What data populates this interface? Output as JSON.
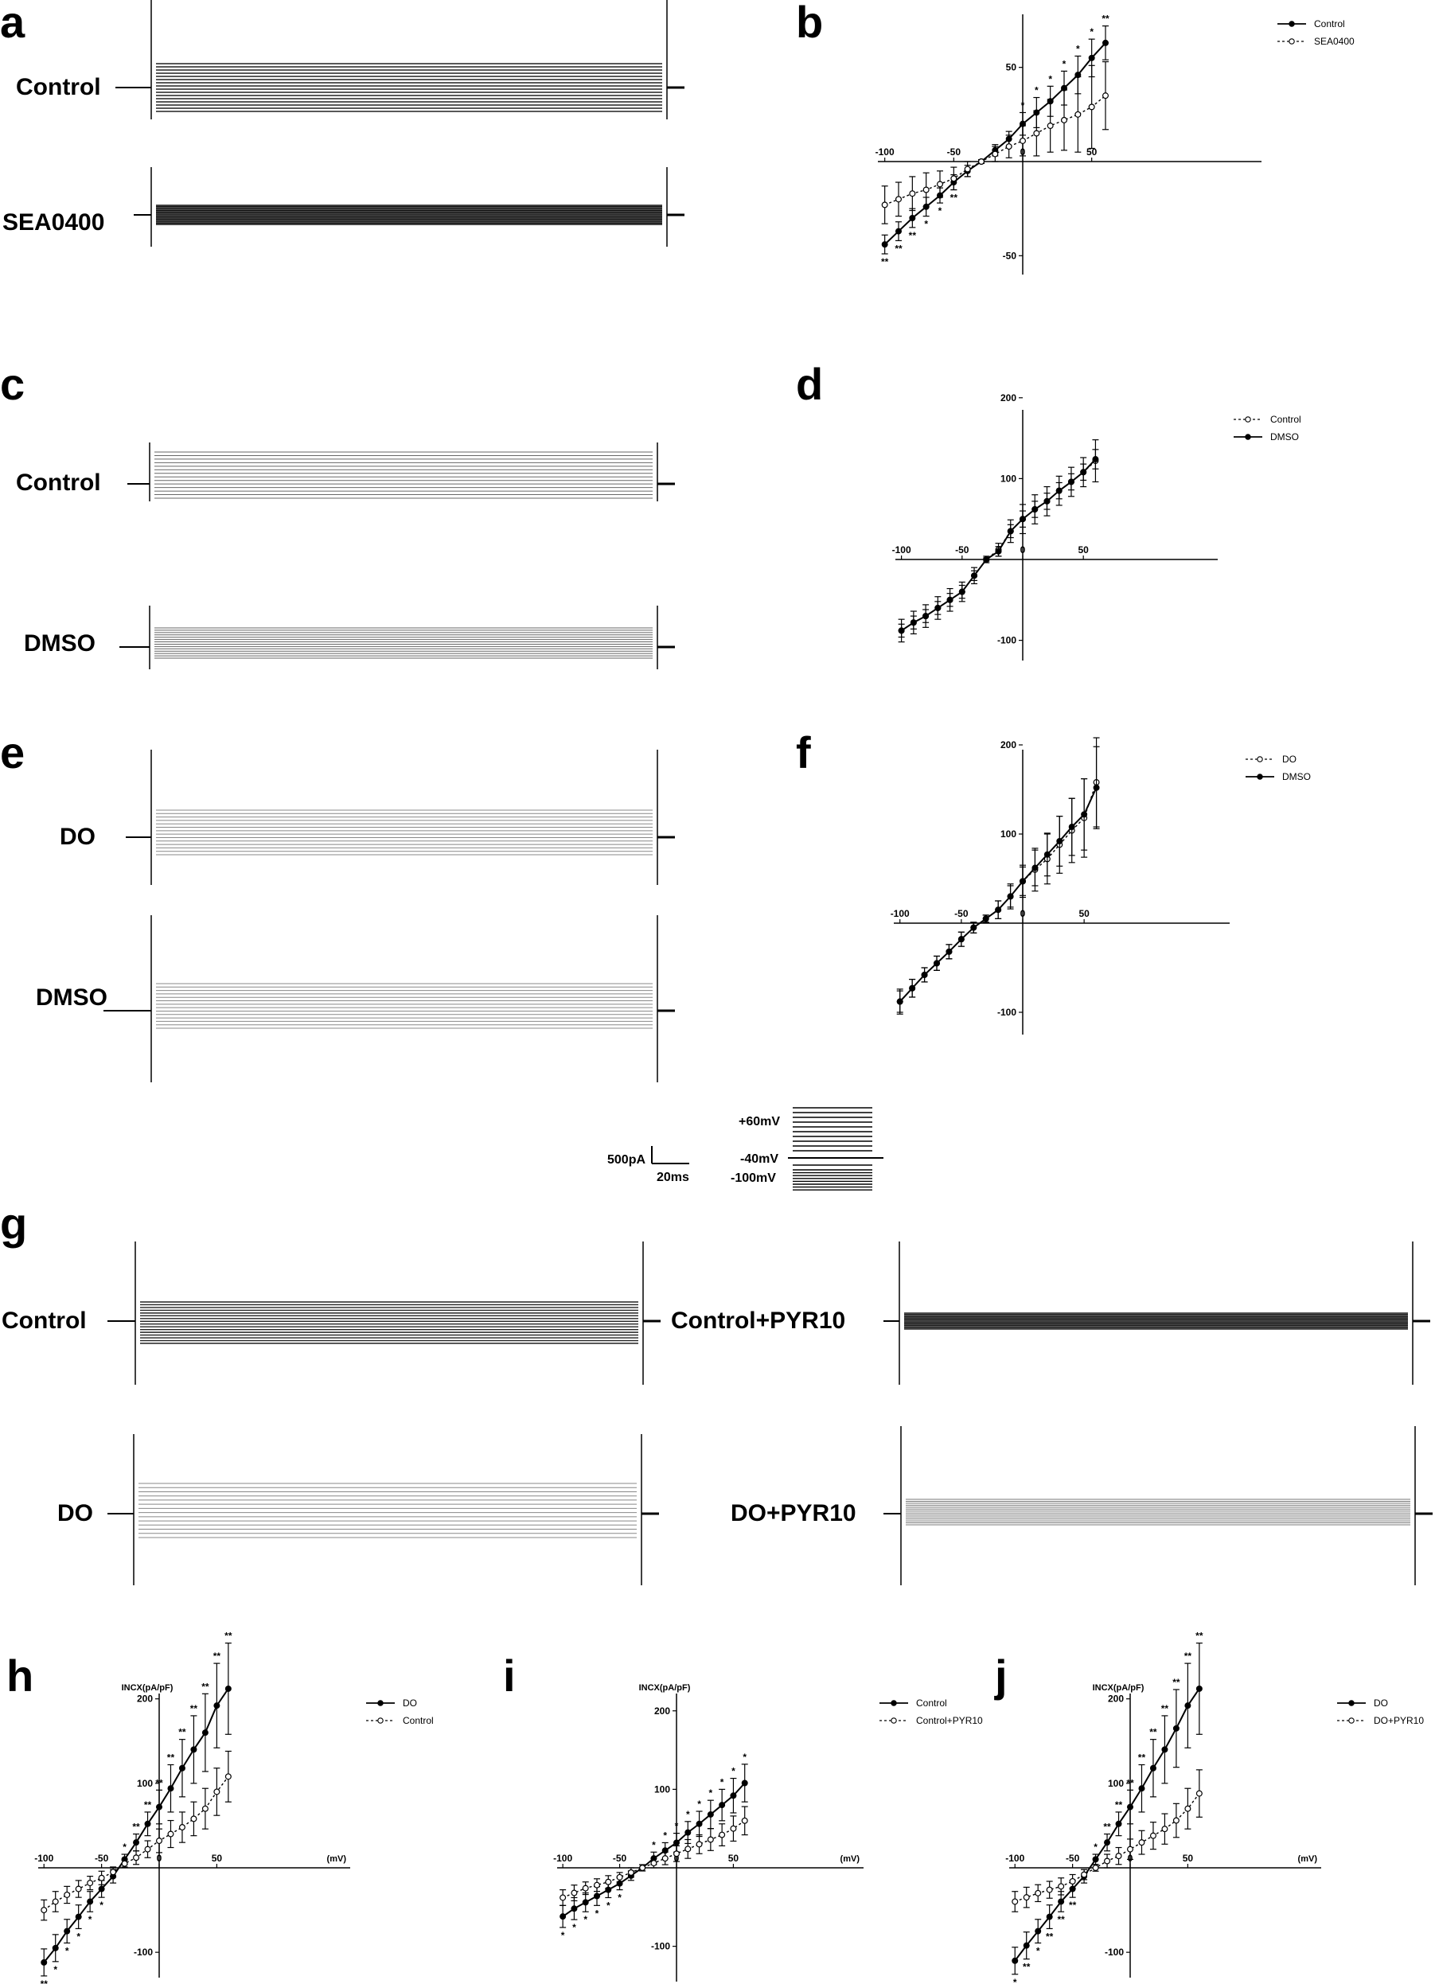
{
  "panels": {
    "a": "a",
    "b": "b",
    "c": "c",
    "d": "d",
    "e": "e",
    "f": "f",
    "g": "g",
    "h": "h",
    "i": "i",
    "j": "j"
  },
  "trace_labels": {
    "a_top": "Control",
    "a_bottom": "SEA0400",
    "c_top": "Control",
    "c_bottom": "DMSO",
    "e_top": "DO",
    "e_bottom": "DMSO",
    "g_tl": "Control",
    "g_tr": "Control+PYR10",
    "g_bl": "DO",
    "g_br": "DO+PYR10"
  },
  "scale_bar": {
    "current": "500pA",
    "time": "20ms"
  },
  "protocol": {
    "top": "+60mV",
    "hold": "-40mV",
    "bottom": "-100mV"
  },
  "chart_data": [
    {
      "id": "b",
      "type": "line",
      "x": [
        -100,
        -90,
        -80,
        -70,
        -60,
        -50,
        -40,
        -30,
        -20,
        -10,
        0,
        10,
        20,
        30,
        40,
        50,
        60
      ],
      "xlim": [
        -105,
        80
      ],
      "ylim": [
        -60,
        80
      ],
      "xticks": [
        -100,
        -50,
        0,
        50
      ],
      "yticks": [
        -50,
        50
      ],
      "ylabel": "",
      "xlabel": "",
      "legend": "top-right",
      "series": [
        {
          "name": "Control",
          "marker": "filled",
          "dash": false,
          "values": [
            -44,
            -37,
            -30,
            -24,
            -18,
            -11,
            -5,
            0,
            6,
            12,
            20,
            26,
            32,
            39,
            46,
            55,
            63
          ],
          "err": [
            5,
            5,
            5,
            5,
            4,
            4,
            3,
            1,
            3,
            4,
            6,
            8,
            8,
            9,
            10,
            10,
            9
          ],
          "sig": [
            "**",
            "**",
            "**",
            "*",
            "*",
            "**",
            "",
            "",
            "",
            "",
            "*",
            "*",
            "*",
            "*",
            "*",
            "*",
            "**"
          ]
        },
        {
          "name": "SEA0400",
          "marker": "open",
          "dash": true,
          "values": [
            -23,
            -20,
            -17,
            -15,
            -12,
            -9,
            -4,
            0,
            4,
            8,
            11,
            15,
            19,
            22,
            25,
            29,
            35
          ],
          "err": [
            10,
            9,
            9,
            9,
            7,
            6,
            4,
            1,
            4,
            6,
            8,
            12,
            14,
            16,
            20,
            22,
            18
          ],
          "sig": []
        }
      ]
    },
    {
      "id": "d",
      "type": "line",
      "x": [
        -100,
        -90,
        -80,
        -70,
        -60,
        -50,
        -40,
        -30,
        -20,
        -10,
        0,
        10,
        20,
        30,
        40,
        50,
        60
      ],
      "xlim": [
        -105,
        65
      ],
      "ylim": [
        -125,
        200
      ],
      "xticks": [
        -100,
        -50,
        0,
        50
      ],
      "yticks": [
        -100,
        100,
        200
      ],
      "ylabel": "",
      "xlabel": "",
      "legend": "top-right",
      "series": [
        {
          "name": "Control",
          "marker": "open",
          "dash": true,
          "values": [
            -88,
            -78,
            -70,
            -60,
            -50,
            -40,
            -20,
            0,
            12,
            35,
            50,
            62,
            72,
            85,
            96,
            108,
            122
          ],
          "err": [
            14,
            14,
            14,
            14,
            14,
            12,
            10,
            4,
            8,
            14,
            18,
            18,
            18,
            18,
            18,
            18,
            26
          ],
          "sig": []
        },
        {
          "name": "DMSO",
          "marker": "filled",
          "dash": false,
          "values": [
            -88,
            -78,
            -70,
            -60,
            -50,
            -40,
            -20,
            0,
            10,
            35,
            50,
            62,
            72,
            85,
            96,
            108,
            124
          ],
          "err": [
            8,
            8,
            8,
            8,
            8,
            8,
            6,
            2,
            6,
            8,
            10,
            10,
            10,
            10,
            10,
            10,
            12
          ],
          "sig": []
        }
      ]
    },
    {
      "id": "f",
      "type": "line",
      "x": [
        -100,
        -90,
        -80,
        -70,
        -60,
        -50,
        -40,
        -30,
        -20,
        -10,
        0,
        10,
        20,
        30,
        40,
        50,
        60
      ],
      "xlim": [
        -105,
        65
      ],
      "ylim": [
        -125,
        200
      ],
      "xticks": [
        -100,
        -50,
        0,
        50
      ],
      "yticks": [
        -100,
        100,
        200
      ],
      "ylabel": "",
      "xlabel": "",
      "legend": "top-right",
      "series": [
        {
          "name": "DO",
          "marker": "open",
          "dash": true,
          "values": [
            -88,
            -73,
            -58,
            -45,
            -32,
            -18,
            -5,
            5,
            15,
            30,
            47,
            60,
            72,
            88,
            104,
            118,
            158
          ],
          "err": [
            14,
            10,
            8,
            8,
            8,
            8,
            6,
            4,
            10,
            14,
            18,
            24,
            28,
            32,
            36,
            44,
            50
          ],
          "sig": []
        },
        {
          "name": "DMSO",
          "marker": "filled",
          "dash": false,
          "values": [
            -88,
            -73,
            -58,
            -45,
            -32,
            -18,
            -5,
            5,
            15,
            30,
            47,
            62,
            77,
            92,
            108,
            122,
            152
          ],
          "err": [
            12,
            10,
            8,
            8,
            8,
            8,
            6,
            4,
            10,
            12,
            16,
            20,
            24,
            28,
            32,
            40,
            46
          ],
          "sig": []
        }
      ]
    },
    {
      "id": "h",
      "type": "line",
      "x": [
        -100,
        -90,
        -80,
        -70,
        -60,
        -50,
        -40,
        -30,
        -20,
        -10,
        0,
        10,
        20,
        30,
        40,
        50,
        60
      ],
      "xlim": [
        -105,
        70
      ],
      "ylim": [
        -130,
        260
      ],
      "xticks": [
        -100,
        -50,
        0,
        50
      ],
      "yticks": [
        -100,
        100,
        200
      ],
      "ylabel": "INCX(pA/pF)",
      "xlabel": "(mV)",
      "legend": "top-right",
      "series": [
        {
          "name": "DO",
          "marker": "filled",
          "dash": false,
          "values": [
            -112,
            -95,
            -75,
            -58,
            -40,
            -25,
            -10,
            10,
            30,
            52,
            72,
            94,
            118,
            140,
            160,
            192,
            212
          ],
          "err": [
            16,
            16,
            14,
            14,
            12,
            10,
            8,
            6,
            10,
            14,
            20,
            28,
            34,
            40,
            46,
            50,
            54
          ],
          "sig": [
            "**",
            "*",
            "*",
            "*",
            "*",
            "*",
            "",
            "*",
            "**",
            "**",
            "**",
            "**",
            "**",
            "**",
            "**",
            "**",
            "**"
          ]
        },
        {
          "name": "Control",
          "marker": "open",
          "dash": true,
          "values": [
            -50,
            -40,
            -32,
            -25,
            -18,
            -12,
            -5,
            5,
            12,
            22,
            32,
            40,
            48,
            58,
            70,
            90,
            108
          ],
          "err": [
            12,
            12,
            10,
            10,
            8,
            8,
            6,
            4,
            8,
            10,
            14,
            16,
            18,
            20,
            24,
            28,
            30
          ],
          "sig": []
        }
      ]
    },
    {
      "id": "i",
      "type": "line",
      "x": [
        -100,
        -90,
        -80,
        -70,
        -60,
        -50,
        -40,
        -30,
        -20,
        -10,
        0,
        10,
        20,
        30,
        40,
        50,
        60
      ],
      "xlim": [
        -105,
        70
      ],
      "ylim": [
        -145,
        200
      ],
      "xticks": [
        -100,
        -50,
        0,
        50
      ],
      "yticks": [
        -100,
        100,
        200
      ],
      "ylabel": "INCX(pA/pF)",
      "xlabel": "(mV)",
      "legend": "top-right",
      "series": [
        {
          "name": "Control",
          "marker": "filled",
          "dash": false,
          "values": [
            -62,
            -52,
            -44,
            -36,
            -28,
            -20,
            -10,
            0,
            12,
            22,
            32,
            45,
            56,
            68,
            80,
            92,
            108
          ],
          "err": [
            14,
            14,
            12,
            12,
            10,
            8,
            6,
            4,
            8,
            10,
            12,
            14,
            16,
            18,
            20,
            22,
            24
          ],
          "sig": [
            "*",
            "*",
            "*",
            "*",
            "*",
            "*",
            "",
            "",
            "*",
            "*",
            "*",
            "*",
            "*",
            "*",
            "*",
            "*",
            "*"
          ]
        },
        {
          "name": "Control+PYR10",
          "marker": "open",
          "dash": true,
          "values": [
            -38,
            -32,
            -26,
            -22,
            -18,
            -12,
            -6,
            0,
            6,
            12,
            18,
            24,
            30,
            36,
            42,
            50,
            60
          ],
          "err": [
            10,
            10,
            8,
            8,
            8,
            6,
            6,
            4,
            6,
            8,
            10,
            12,
            12,
            14,
            14,
            16,
            18
          ],
          "sig": []
        }
      ]
    },
    {
      "id": "j",
      "type": "line",
      "x": [
        -100,
        -90,
        -80,
        -70,
        -60,
        -50,
        -40,
        -30,
        -20,
        -10,
        0,
        10,
        20,
        30,
        40,
        50,
        60
      ],
      "xlim": [
        -105,
        70
      ],
      "ylim": [
        -130,
        260
      ],
      "xticks": [
        -100,
        -50,
        0,
        50
      ],
      "yticks": [
        -100,
        100,
        200
      ],
      "ylabel": "INCX(pA/pF)",
      "xlabel": "(mV)",
      "legend": "top-right",
      "series": [
        {
          "name": "DO",
          "marker": "filled",
          "dash": false,
          "values": [
            -110,
            -92,
            -75,
            -58,
            -40,
            -25,
            -10,
            10,
            30,
            52,
            72,
            94,
            118,
            140,
            165,
            192,
            212
          ],
          "err": [
            16,
            16,
            14,
            14,
            12,
            10,
            8,
            6,
            10,
            14,
            20,
            28,
            34,
            40,
            46,
            50,
            54
          ],
          "sig": [
            "*",
            "**",
            "*",
            "**",
            "**",
            "**",
            "",
            "*",
            "**",
            "**",
            "**",
            "**",
            "**",
            "**",
            "**",
            "**",
            "**"
          ]
        },
        {
          "name": "DO+PYR10",
          "marker": "open",
          "dash": true,
          "values": [
            -40,
            -35,
            -30,
            -26,
            -22,
            -16,
            -8,
            0,
            8,
            14,
            22,
            30,
            38,
            46,
            56,
            70,
            88
          ],
          "err": [
            12,
            12,
            10,
            10,
            10,
            8,
            6,
            4,
            8,
            10,
            12,
            14,
            16,
            18,
            20,
            24,
            28
          ],
          "sig": []
        }
      ]
    }
  ]
}
